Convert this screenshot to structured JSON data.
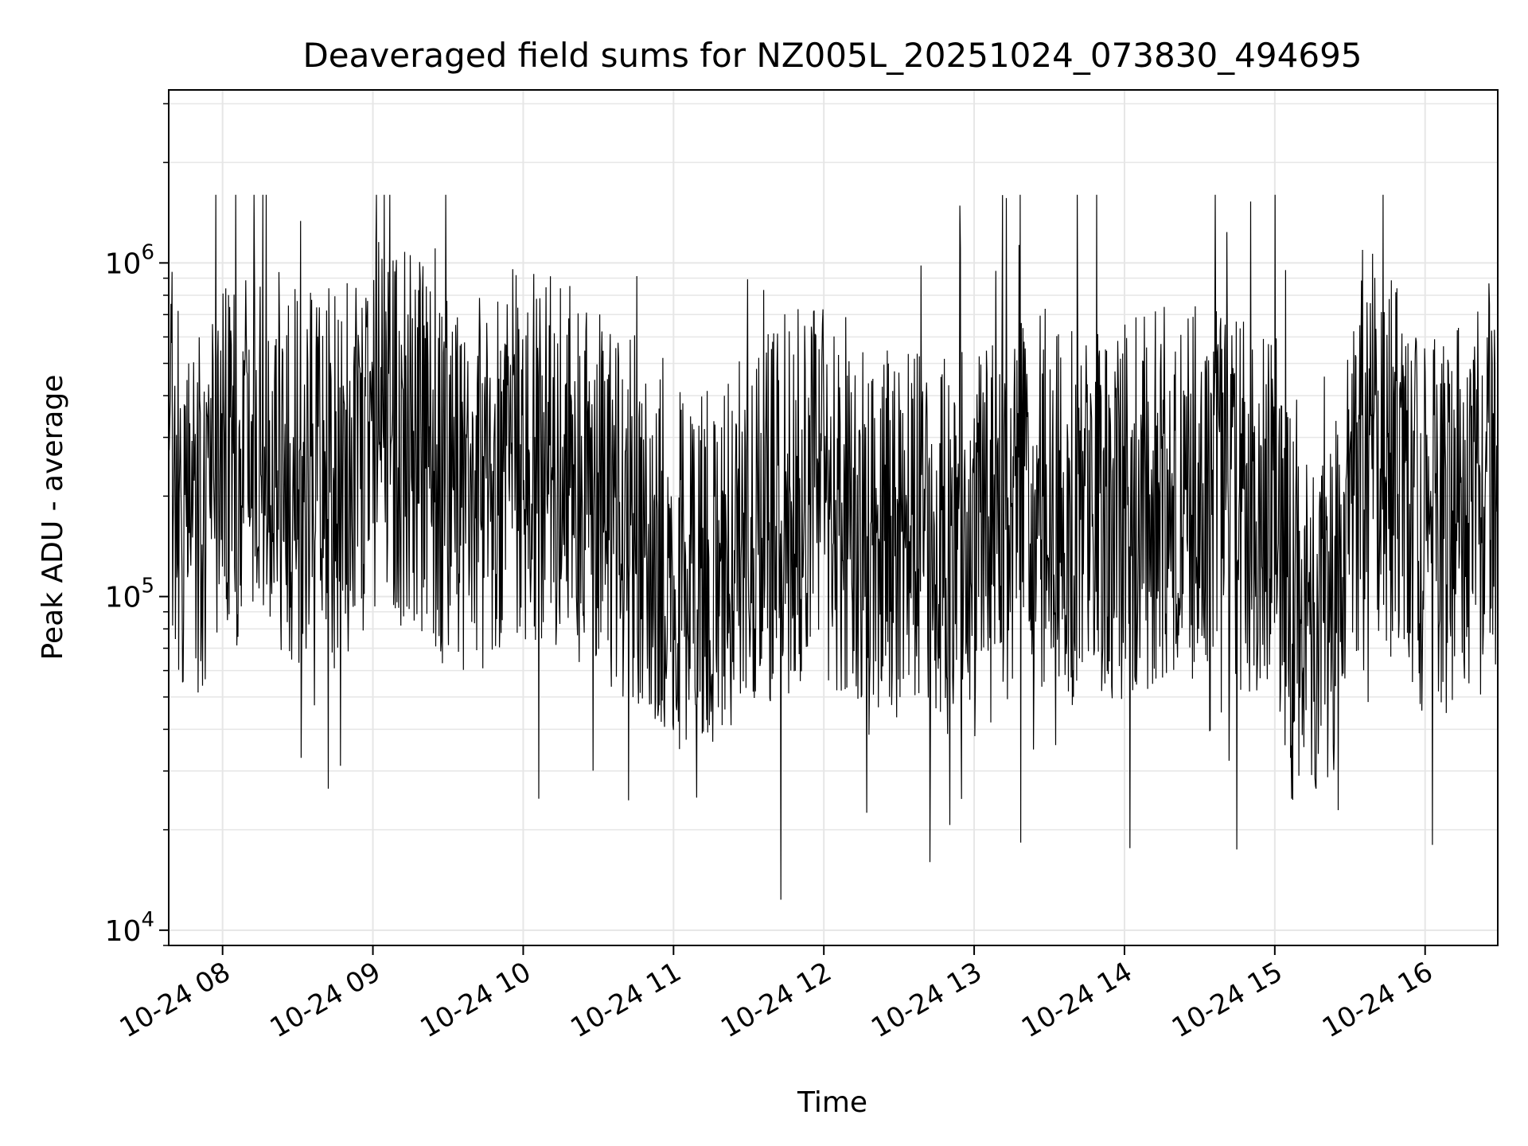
{
  "chart_data": {
    "type": "line",
    "title": "Deaveraged field sums for NZ005L_20251024_073830_494695",
    "xlabel": "Time",
    "ylabel": "Peak ADU - average",
    "x_range": [
      "2025-10-24T07:38:30",
      "2025-10-24T16:29:00"
    ],
    "x_tick_labels": [
      "10-24 08",
      "10-24 09",
      "10-24 10",
      "10-24 11",
      "10-24 12",
      "10-24 13",
      "10-24 14",
      "10-24 15",
      "10-24 16"
    ],
    "x_tick_values": [
      "2025-10-24T08:00",
      "2025-10-24T09:00",
      "2025-10-24T10:00",
      "2025-10-24T11:00",
      "2025-10-24T12:00",
      "2025-10-24T13:00",
      "2025-10-24T14:00",
      "2025-10-24T15:00",
      "2025-10-24T16:00"
    ],
    "y_scale": "log",
    "ylim": [
      9000,
      3300000
    ],
    "y_tick_values": [
      10000,
      100000,
      1000000
    ],
    "y_tick_labels": [
      "10",
      "10",
      "10"
    ],
    "y_tick_exponents": [
      "4",
      "5",
      "6"
    ],
    "grid": true,
    "line_color": "#000000",
    "grid_color": "#e6e6e6",
    "series_anchor_points": [
      {
        "x": "2025-10-24T07:38:30",
        "y": 300000
      },
      {
        "x": "2025-10-24T07:45",
        "y": 150000
      },
      {
        "x": "2025-10-24T08:00",
        "y": 250000
      },
      {
        "x": "2025-10-24T08:15",
        "y": 300000
      },
      {
        "x": "2025-10-24T08:30",
        "y": 230000
      },
      {
        "x": "2025-10-24T08:45",
        "y": 220000
      },
      {
        "x": "2025-10-24T09:00",
        "y": 320000
      },
      {
        "x": "2025-10-24T09:15",
        "y": 290000
      },
      {
        "x": "2025-10-24T09:30",
        "y": 220000
      },
      {
        "x": "2025-10-24T09:45",
        "y": 220000
      },
      {
        "x": "2025-10-24T10:00",
        "y": 280000
      },
      {
        "x": "2025-10-24T10:15",
        "y": 260000
      },
      {
        "x": "2025-10-24T10:30",
        "y": 200000
      },
      {
        "x": "2025-10-24T10:45",
        "y": 170000
      },
      {
        "x": "2025-10-24T11:00",
        "y": 110000
      },
      {
        "x": "2025-10-24T11:15",
        "y": 110000
      },
      {
        "x": "2025-10-24T11:30",
        "y": 160000
      },
      {
        "x": "2025-10-24T11:45",
        "y": 190000
      },
      {
        "x": "2025-10-24T12:00",
        "y": 200000
      },
      {
        "x": "2025-10-24T12:15",
        "y": 180000
      },
      {
        "x": "2025-10-24T12:30",
        "y": 140000
      },
      {
        "x": "2025-10-24T12:45",
        "y": 160000
      },
      {
        "x": "2025-10-24T13:00",
        "y": 140000
      },
      {
        "x": "2025-10-24T13:15",
        "y": 180000
      },
      {
        "x": "2025-10-24T13:30",
        "y": 200000
      },
      {
        "x": "2025-10-24T13:45",
        "y": 170000
      },
      {
        "x": "2025-10-24T14:00",
        "y": 180000
      },
      {
        "x": "2025-10-24T14:15",
        "y": 200000
      },
      {
        "x": "2025-10-24T14:30",
        "y": 210000
      },
      {
        "x": "2025-10-24T14:45",
        "y": 200000
      },
      {
        "x": "2025-10-24T15:00",
        "y": 170000
      },
      {
        "x": "2025-10-24T15:10",
        "y": 65000
      },
      {
        "x": "2025-10-24T15:20",
        "y": 80000
      },
      {
        "x": "2025-10-24T15:35",
        "y": 320000
      },
      {
        "x": "2025-10-24T15:45",
        "y": 260000
      },
      {
        "x": "2025-10-24T16:00",
        "y": 150000
      },
      {
        "x": "2025-10-24T16:15",
        "y": 180000
      },
      {
        "x": "2025-10-24T16:29",
        "y": 300000
      }
    ],
    "series_point_count": 2400,
    "series_max": 1600000,
    "series_min": 12000
  }
}
